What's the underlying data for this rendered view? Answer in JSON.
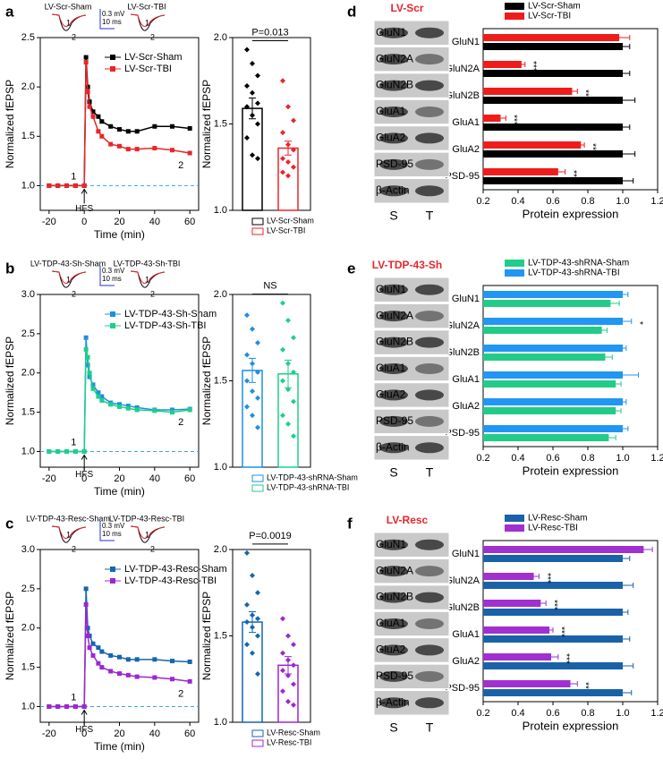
{
  "chart_data": [
    {
      "panel": "a",
      "type": "line",
      "xlabel": "Time (min)",
      "ylabel": "Normalized fEPSP",
      "xlim": [
        -25,
        65
      ],
      "xticks": [
        -20,
        0,
        20,
        40,
        60
      ],
      "ylim": [
        0.75,
        2.5
      ],
      "yticks": [
        {
          "value": 1,
          "label": "1.0"
        },
        1.5,
        {
          "value": 2,
          "label": "2.0"
        },
        2.5
      ],
      "hline": 1,
      "legend": "upper right",
      "annotations": [
        "1",
        "2",
        "HFS"
      ],
      "inset": {
        "traces": [
          "LV-Scr-Sham",
          "LV-Scr-TBI"
        ],
        "scale": [
          "0.3 mV",
          "10 ms"
        ],
        "marks": [
          "1",
          "2"
        ]
      },
      "x": [
        -20,
        -15,
        -10,
        -5,
        0,
        1,
        2,
        3,
        5,
        8,
        10,
        15,
        20,
        25,
        30,
        40,
        50,
        60
      ],
      "series": [
        {
          "name": "LV-Scr-Sham",
          "color": "#000000",
          "values": [
            1,
            1,
            1,
            1,
            1,
            2.3,
            2.0,
            1.85,
            1.75,
            1.7,
            1.65,
            1.6,
            1.57,
            1.55,
            1.55,
            1.6,
            1.6,
            1.58
          ]
        },
        {
          "name": "LV-Scr-TBI",
          "color": "#e8262a",
          "values": [
            1,
            1,
            1,
            1,
            1,
            2.25,
            1.95,
            1.8,
            1.7,
            1.55,
            1.5,
            1.42,
            1.4,
            1.37,
            1.37,
            1.38,
            1.36,
            1.33
          ]
        }
      ]
    },
    {
      "type": "bar",
      "ylabel": "Normalized fEPSP",
      "ylim": [
        1,
        2
      ],
      "yticks": [
        {
          "value": 1,
          "label": "1.0"
        },
        1.5,
        {
          "value": 2,
          "label": "2.0"
        }
      ],
      "legend": "below",
      "annotation": "P=0.013",
      "series": [
        {
          "name": "LV-Scr-Sham",
          "color": "#000000",
          "value": 1.59,
          "error": 0.06,
          "points": [
            1.93,
            1.85,
            1.78,
            1.72,
            1.68,
            1.62,
            1.6,
            1.55,
            1.5,
            1.42,
            1.32,
            1.3
          ]
        },
        {
          "name": "LV-Scr-TBI",
          "color": "#e8262a",
          "value": 1.36,
          "error": 0.04,
          "points": [
            1.75,
            1.6,
            1.52,
            1.45,
            1.38,
            1.35,
            1.3,
            1.28,
            1.25,
            1.22,
            1.2
          ]
        }
      ]
    },
    {
      "panel": "d",
      "type": "hbar",
      "xlabel": "Protein expression",
      "xlim": [
        0.2,
        1.2
      ],
      "xticks": [
        0.2,
        0.4,
        0.6,
        0.8,
        {
          "value": 1,
          "label": "1.0"
        },
        1.2
      ],
      "legend": "above",
      "blot": {
        "title": "LV-Scr",
        "rows": [
          "GluN1",
          "GluN2A",
          "GluN2B",
          "GluA1",
          "GluA2",
          "PSD-95",
          "β-Actin"
        ],
        "lanes": [
          "S",
          "T"
        ]
      },
      "categories": [
        "GluN1",
        "GluN2A",
        "GluN2B",
        "GluA1",
        "GluA2",
        "PSD-95"
      ],
      "stars": [
        null,
        "***",
        "**",
        "***",
        "**",
        "**"
      ],
      "series": [
        {
          "name": "LV-Scr-Sham",
          "color": "#000000",
          "values": [
            1,
            1,
            1,
            1,
            1,
            1
          ],
          "errors": [
            0.04,
            0.04,
            0.07,
            0.04,
            0.07,
            0.06
          ]
        },
        {
          "name": "LV-Scr-TBI",
          "color": "#f01c1c",
          "values": [
            0.98,
            0.42,
            0.71,
            0.3,
            0.76,
            0.63
          ],
          "errors": [
            0.06,
            0.02,
            0.03,
            0.03,
            0.02,
            0.04
          ]
        }
      ]
    },
    {
      "panel": "b",
      "type": "line",
      "xlabel": "Time (min)",
      "ylabel": "Normalized fEPSP",
      "xlim": [
        -25,
        65
      ],
      "xticks": [
        -20,
        0,
        20,
        40,
        60
      ],
      "ylim": [
        0.8,
        3
      ],
      "yticks": [
        {
          "value": 1,
          "label": "1.0"
        },
        1.5,
        {
          "value": 2,
          "label": "2.0"
        },
        2.5,
        {
          "value": 3,
          "label": "3.0"
        }
      ],
      "hline": 1,
      "legend": "upper right",
      "annotations": [
        "1",
        "2",
        "HFS"
      ],
      "inset": {
        "traces": [
          "LV-TDP-43-Sh-Sham",
          "LV-TDP-43-Sh-TBI"
        ],
        "scale": [
          "0.3 mV",
          "10 ms"
        ],
        "marks": [
          "1",
          "2"
        ]
      },
      "x": [
        -20,
        -15,
        -10,
        -5,
        0,
        1,
        2,
        3,
        5,
        8,
        10,
        15,
        20,
        25,
        30,
        40,
        50,
        60
      ],
      "series": [
        {
          "name": "LV-TDP-43-Sh-Sham",
          "color": "#1e8fe0",
          "values": [
            1,
            1,
            1,
            1,
            1,
            2.45,
            2.1,
            1.95,
            1.85,
            1.75,
            1.7,
            1.62,
            1.6,
            1.58,
            1.56,
            1.53,
            1.53,
            1.54
          ]
        },
        {
          "name": "LV-TDP-43-Sh-TBI",
          "color": "#1dcf8a",
          "values": [
            1,
            1,
            1,
            1,
            1,
            2.3,
            2.2,
            2.0,
            1.8,
            1.7,
            1.65,
            1.6,
            1.57,
            1.55,
            1.53,
            1.52,
            1.5,
            1.53
          ]
        }
      ]
    },
    {
      "type": "bar",
      "ylabel": "Normalized fEPSP",
      "ylim": [
        1,
        2
      ],
      "yticks": [
        {
          "value": 1,
          "label": "1.0"
        },
        1.5,
        {
          "value": 2,
          "label": "2.0"
        }
      ],
      "legend": "below",
      "annotation": "NS",
      "series": [
        {
          "name": "LV-TDP-43-shRNA-Sham",
          "color": "#1e8fe0",
          "value": 1.56,
          "error": 0.07,
          "points": [
            1.88,
            1.8,
            1.72,
            1.65,
            1.6,
            1.55,
            1.5,
            1.44,
            1.4,
            1.35,
            1.3,
            1.23
          ]
        },
        {
          "name": "LV-TDP-43-shRNA-TBI",
          "color": "#1dcf8a",
          "value": 1.54,
          "error": 0.08,
          "points": [
            1.95,
            1.85,
            1.75,
            1.68,
            1.6,
            1.55,
            1.5,
            1.45,
            1.38,
            1.3,
            1.25,
            1.18
          ]
        }
      ]
    },
    {
      "panel": "e",
      "type": "hbar",
      "xlabel": "Protein expression",
      "xlim": [
        0.2,
        1.2
      ],
      "xticks": [
        0.2,
        0.4,
        0.6,
        0.8,
        {
          "value": 1,
          "label": "1.0"
        },
        1.2
      ],
      "legend": "above",
      "blot": {
        "title": "LV-TDP-43-Sh",
        "rows": [
          "GluN1",
          "GluN2A",
          "GluN2B",
          "GluA1",
          "GluA2",
          "PSD-95",
          "β-Actin"
        ],
        "lanes": [
          "S",
          "T"
        ]
      },
      "categories": [
        "GluN1",
        "GluN2A",
        "GluN2B",
        "GluA1",
        "GluA2",
        "PSD-95"
      ],
      "stars": [
        null,
        "*",
        null,
        null,
        null,
        null
      ],
      "series": [
        {
          "name": "LV-TDP-43-shRNA-Sham",
          "color": "#22cc88",
          "values": [
            0.93,
            0.88,
            0.9,
            0.96,
            0.96,
            0.92
          ],
          "errors": [
            0.05,
            0.03,
            0.04,
            0.03,
            0.03,
            0.04
          ]
        },
        {
          "name": "LV-TDP-43-shRNA-TBI",
          "color": "#2196f3",
          "values": [
            1,
            1,
            1,
            1,
            1,
            1
          ],
          "errors": [
            0.03,
            0.05,
            0.02,
            0.09,
            0.02,
            0.03
          ]
        }
      ]
    },
    {
      "panel": "c",
      "type": "line",
      "xlabel": "Time (min)",
      "ylabel": "Normalized fEPSP",
      "xlim": [
        -25,
        65
      ],
      "xticks": [
        -20,
        0,
        20,
        40,
        60
      ],
      "ylim": [
        0.8,
        3
      ],
      "yticks": [
        {
          "value": 1,
          "label": "1.0"
        },
        1.5,
        {
          "value": 2,
          "label": "2.0"
        },
        2.5,
        {
          "value": 3,
          "label": "3.0"
        }
      ],
      "hline": 1,
      "legend": "upper right",
      "annotations": [
        "1",
        "2",
        "HFS"
      ],
      "inset": {
        "traces": [
          "LV-TDP-43-Resc-Sham",
          "LV-TDP-43-Resc-TBI"
        ],
        "scale": [
          "0.3 mV",
          "10 ms"
        ],
        "marks": [
          "1",
          "2"
        ]
      },
      "x": [
        -20,
        -15,
        -10,
        -5,
        0,
        1,
        2,
        3,
        5,
        8,
        10,
        15,
        20,
        25,
        30,
        40,
        50,
        60
      ],
      "series": [
        {
          "name": "LV-TDP-43-Resc-Sham",
          "color": "#1565b0",
          "values": [
            1,
            1,
            1,
            1,
            1,
            2.5,
            2.0,
            1.9,
            1.8,
            1.75,
            1.7,
            1.65,
            1.63,
            1.6,
            1.6,
            1.6,
            1.58,
            1.57
          ]
        },
        {
          "name": "LV-TDP-43-Resc-TBI",
          "color": "#9c27d0",
          "values": [
            1,
            1,
            1,
            1,
            1,
            2.3,
            1.9,
            1.75,
            1.65,
            1.55,
            1.5,
            1.45,
            1.42,
            1.4,
            1.38,
            1.37,
            1.35,
            1.32
          ]
        }
      ]
    },
    {
      "type": "bar",
      "ylabel": "Normalized fEPSP",
      "ylim": [
        1,
        2
      ],
      "yticks": [
        {
          "value": 1,
          "label": "1.0"
        },
        1.5,
        {
          "value": 2,
          "label": "2.0"
        }
      ],
      "legend": "below",
      "annotation": "P=0.0019",
      "series": [
        {
          "name": "LV-Resc-Sham",
          "color": "#1565b0",
          "value": 1.58,
          "error": 0.06,
          "points": [
            1.98,
            1.85,
            1.75,
            1.68,
            1.62,
            1.6,
            1.58,
            1.55,
            1.5,
            1.45,
            1.4,
            1.28
          ]
        },
        {
          "name": "LV-Resc-TBI",
          "color": "#9c27d0",
          "value": 1.33,
          "error": 0.05,
          "points": [
            1.6,
            1.5,
            1.45,
            1.4,
            1.36,
            1.33,
            1.3,
            1.27,
            1.22,
            1.18,
            1.12,
            1.1
          ]
        }
      ]
    },
    {
      "panel": "f",
      "type": "hbar",
      "xlabel": "Protein expression",
      "xlim": [
        0.2,
        1.2
      ],
      "xticks": [
        0.2,
        0.4,
        0.6,
        0.8,
        {
          "value": 1,
          "label": "1.0"
        },
        1.2
      ],
      "legend": "above",
      "blot": {
        "title": "LV-Resc",
        "rows": [
          "GluN1",
          "GluN2A",
          "GluN2B",
          "GluA1",
          "GluA2",
          "PSD-95",
          "β-Actin"
        ],
        "lanes": [
          "S",
          "T"
        ]
      },
      "categories": [
        "GluN1",
        "GluN2A",
        "GluN2B",
        "GluA1",
        "GluA2",
        "PSD-95"
      ],
      "stars": [
        null,
        "***",
        "***",
        "***",
        "***",
        "**"
      ],
      "series": [
        {
          "name": "LV-Resc-Sham",
          "color": "#1a62a8",
          "values": [
            1,
            1,
            1,
            1,
            1,
            1
          ],
          "errors": [
            0.04,
            0.06,
            0.03,
            0.04,
            0.06,
            0.05
          ]
        },
        {
          "name": "LV-Resc-TBI",
          "color": "#a030d0",
          "values": [
            1.12,
            0.49,
            0.53,
            0.58,
            0.59,
            0.7
          ],
          "errors": [
            0.05,
            0.03,
            0.03,
            0.02,
            0.04,
            0.04
          ]
        }
      ]
    }
  ]
}
